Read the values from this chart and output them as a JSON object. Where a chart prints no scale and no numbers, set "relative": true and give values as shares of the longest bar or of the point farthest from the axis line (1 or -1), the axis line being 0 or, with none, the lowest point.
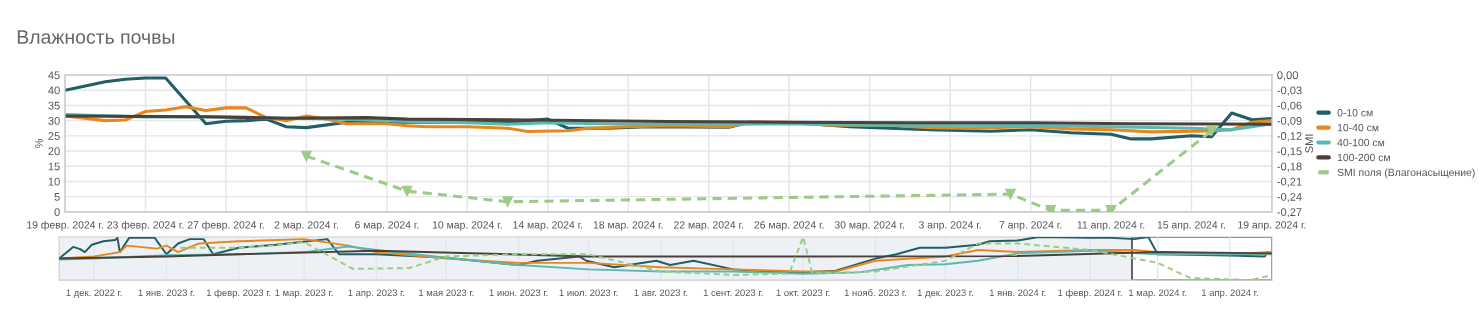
{
  "chart_data": [
    {
      "type": "line",
      "title": "Влажность почвы",
      "ylabel": "%",
      "y2label": "SMI",
      "xlim": [
        "2024-02-19",
        "2024-04-19"
      ],
      "xticks": [
        {
          "value": "2024-02-19",
          "label": "19 февр. 2024 г."
        },
        {
          "value": "2024-02-23",
          "label": "23 февр. 2024 г."
        },
        {
          "value": "2024-02-27",
          "label": "27 февр. 2024 г."
        },
        {
          "value": "2024-03-02",
          "label": "2 мар. 2024 г."
        },
        {
          "value": "2024-03-06",
          "label": "6 мар. 2024 г."
        },
        {
          "value": "2024-03-10",
          "label": "10 мар. 2024 г."
        },
        {
          "value": "2024-03-14",
          "label": "14 мар. 2024 г."
        },
        {
          "value": "2024-03-18",
          "label": "18 мар. 2024 г."
        },
        {
          "value": "2024-03-22",
          "label": "22 мар. 2024 г."
        },
        {
          "value": "2024-03-26",
          "label": "26 мар. 2024 г."
        },
        {
          "value": "2024-03-30",
          "label": "30 мар. 2024 г."
        },
        {
          "value": "2024-04-03",
          "label": "3 апр. 2024 г."
        },
        {
          "value": "2024-04-07",
          "label": "7 апр. 2024 г."
        },
        {
          "value": "2024-04-11",
          "label": "11 апр. 2024 г."
        },
        {
          "value": "2024-04-15",
          "label": "15 апр. 2024 г."
        },
        {
          "value": "2024-04-19",
          "label": "19 апр. 2024 г."
        }
      ],
      "ylim": [
        0,
        45
      ],
      "yticks": [
        0,
        5,
        10,
        15,
        20,
        25,
        30,
        35,
        40,
        45
      ],
      "y2lim": [
        -0.27,
        0
      ],
      "y2ticks": [
        {
          "value": -0.27,
          "label": "-0,27"
        },
        {
          "value": -0.24,
          "label": "-0,24"
        },
        {
          "value": -0.21,
          "label": "-0,21"
        },
        {
          "value": -0.18,
          "label": "-0,18"
        },
        {
          "value": -0.15,
          "label": "-0,15"
        },
        {
          "value": -0.12,
          "label": "-0,12"
        },
        {
          "value": -0.09,
          "label": "-0,09"
        },
        {
          "value": -0.06,
          "label": "-0,06"
        },
        {
          "value": -0.03,
          "label": "-0,03"
        },
        {
          "value": 0,
          "label": "0,00"
        }
      ],
      "grid": true,
      "legend": "right",
      "series": [
        {
          "name": "0-10 см",
          "color": "#215e66",
          "x": [
            "2024-02-19",
            "2024-02-21",
            "2024-02-22",
            "2024-02-23",
            "2024-02-24",
            "2024-02-26",
            "2024-02-27",
            "2024-02-28",
            "2024-02-29",
            "2024-03-01",
            "2024-03-02",
            "2024-03-04",
            "2024-03-08",
            "2024-03-12",
            "2024-03-14",
            "2024-03-15",
            "2024-03-17",
            "2024-03-19",
            "2024-03-23",
            "2024-03-24",
            "2024-03-27",
            "2024-03-29",
            "2024-04-02",
            "2024-04-05",
            "2024-04-07",
            "2024-04-09",
            "2024-04-11",
            "2024-04-12",
            "2024-04-13",
            "2024-04-15",
            "2024-04-16",
            "2024-04-17",
            "2024-04-18",
            "2024-04-19"
          ],
          "values": [
            40,
            42.8,
            43.6,
            44,
            44,
            29,
            29.8,
            30,
            30.5,
            28,
            27.7,
            29.5,
            29.5,
            29.5,
            30.5,
            27.5,
            27.5,
            28,
            27.8,
            29.5,
            29,
            28,
            27,
            26.5,
            27,
            26,
            25.5,
            24,
            24,
            25,
            24.7,
            32.5,
            30.3,
            30.7
          ]
        },
        {
          "name": "10-40 см",
          "color": "#e8871e",
          "x": [
            "2024-02-19",
            "2024-02-21",
            "2024-02-22",
            "2024-02-23",
            "2024-02-24",
            "2024-02-25",
            "2024-02-26",
            "2024-02-27",
            "2024-02-28",
            "2024-02-29",
            "2024-03-01",
            "2024-03-02",
            "2024-03-03",
            "2024-03-04",
            "2024-03-06",
            "2024-03-07",
            "2024-03-08",
            "2024-03-10",
            "2024-03-12",
            "2024-03-13",
            "2024-03-15",
            "2024-03-16",
            "2024-03-18",
            "2024-03-20",
            "2024-03-23",
            "2024-03-24",
            "2024-03-26",
            "2024-03-28",
            "2024-03-31",
            "2024-04-02",
            "2024-04-04",
            "2024-04-07",
            "2024-04-09",
            "2024-04-11",
            "2024-04-13",
            "2024-04-16",
            "2024-04-17",
            "2024-04-18",
            "2024-04-19"
          ],
          "values": [
            31.5,
            30,
            30.2,
            33,
            33.5,
            34.6,
            33.3,
            34.2,
            34.2,
            31,
            30,
            31.5,
            30.5,
            29,
            29,
            28.3,
            28,
            28,
            27.5,
            26.4,
            26.7,
            27.5,
            28,
            28.3,
            28,
            29.5,
            29.5,
            28.5,
            28.5,
            27.7,
            27.5,
            28,
            27.3,
            27,
            26.3,
            26.6,
            27,
            29.5,
            30
          ]
        },
        {
          "name": "40-100 см",
          "color": "#5ab8b2",
          "x": [
            "2024-02-19",
            "2024-02-23",
            "2024-02-26",
            "2024-03-01",
            "2024-03-03",
            "2024-03-06",
            "2024-03-08",
            "2024-03-10",
            "2024-03-12",
            "2024-03-14",
            "2024-03-18",
            "2024-03-22",
            "2024-03-26",
            "2024-03-30",
            "2024-04-03",
            "2024-04-07",
            "2024-04-11",
            "2024-04-15",
            "2024-04-17",
            "2024-04-19"
          ],
          "values": [
            32,
            31.2,
            31.3,
            30.8,
            30.6,
            30,
            29.6,
            29.3,
            28.8,
            29.3,
            28.8,
            28.7,
            29,
            28.5,
            28.5,
            28.4,
            28,
            27.5,
            27,
            29
          ]
        },
        {
          "name": "100-200 см",
          "color": "#4a413b",
          "x": [
            "2024-02-19",
            "2024-02-26",
            "2024-03-01",
            "2024-03-05",
            "2024-03-07",
            "2024-03-12",
            "2024-03-20",
            "2024-03-26",
            "2024-04-01",
            "2024-04-07",
            "2024-04-12",
            "2024-04-16",
            "2024-04-19"
          ],
          "values": [
            31.5,
            31.3,
            30.8,
            31,
            30.5,
            30.3,
            29.7,
            29.5,
            29.3,
            29.3,
            29,
            28.9,
            28.8
          ]
        },
        {
          "name": "SMI поля (Влагонасыщение)",
          "color": "#9ccb86",
          "axis": "y2",
          "line_style": "dashed",
          "marker": "triangle",
          "x": [
            "2024-03-02",
            "2024-03-07",
            "2024-03-12",
            "2024-04-06",
            "2024-04-08",
            "2024-04-11",
            "2024-04-16"
          ],
          "values": [
            -0.16,
            -0.229,
            -0.25,
            -0.235,
            -0.267,
            -0.267,
            -0.11
          ]
        }
      ]
    },
    {
      "type": "line",
      "relative": true,
      "xlim": [
        "2022-11-16",
        "2024-04-19"
      ],
      "xticks": [
        {
          "value": "2022-12-01",
          "label": "1 дек. 2022 г."
        },
        {
          "value": "2023-01-01",
          "label": "1 янв. 2023 г."
        },
        {
          "value": "2023-02-01",
          "label": "1 февр. 2023 г."
        },
        {
          "value": "2023-03-01",
          "label": "1 мар. 2023 г."
        },
        {
          "value": "2023-04-01",
          "label": "1 апр. 2023 г."
        },
        {
          "value": "2023-05-01",
          "label": "1 мая 2023 г."
        },
        {
          "value": "2023-06-01",
          "label": "1 июн. 2023 г."
        },
        {
          "value": "2023-07-01",
          "label": "1 июл. 2023 г."
        },
        {
          "value": "2023-08-01",
          "label": "1 авг. 2023 г."
        },
        {
          "value": "2023-09-01",
          "label": "1 сент. 2023 г."
        },
        {
          "value": "2023-10-01",
          "label": "1 окт. 2023 г."
        },
        {
          "value": "2023-11-01",
          "label": "1 нояб. 2023 г."
        },
        {
          "value": "2023-12-01",
          "label": "1 дек. 2023 г."
        },
        {
          "value": "2024-01-01",
          "label": "1 янв. 2024 г."
        },
        {
          "value": "2024-02-01",
          "label": "1 февр. 2024 г."
        },
        {
          "value": "2024-03-01",
          "label": "1 мар. 2024 г."
        },
        {
          "value": "2024-04-01",
          "label": "1 апр. 2024 г."
        }
      ],
      "tick_labels": "x",
      "grid": "x",
      "bands": [
        {
          "axis": "x",
          "from": "2024-02-19",
          "to": "2024-04-19",
          "color": "#ffffff"
        }
      ],
      "series": [
        {
          "color": "#215e66",
          "x": [
            "2022-11-16",
            "2022-11-22",
            "2022-11-25",
            "2022-11-27",
            "2022-11-30",
            "2022-12-05",
            "2022-12-10",
            "2022-12-11",
            "2022-12-12",
            "2022-12-16",
            "2022-12-27",
            "2023-01-01",
            "2023-01-06",
            "2023-01-11",
            "2023-01-17",
            "2023-01-21",
            "2023-02-01",
            "2023-02-17",
            "2023-03-11",
            "2023-03-16",
            "2023-04-01",
            "2023-05-01",
            "2023-06-01",
            "2023-06-09",
            "2023-06-27",
            "2023-06-30",
            "2023-07-12",
            "2023-07-30",
            "2023-08-05",
            "2023-08-15",
            "2023-09-01",
            "2023-09-15",
            "2023-10-01",
            "2023-10-15",
            "2023-11-01",
            "2023-11-10",
            "2023-11-20",
            "2023-12-01",
            "2023-12-15",
            "2023-12-20",
            "2024-01-01",
            "2024-01-10",
            "2024-02-01",
            "2024-02-10",
            "2024-02-20",
            "2024-02-26",
            "2024-03-01",
            "2024-04-01",
            "2024-04-16",
            "2024-04-17",
            "2024-04-19"
          ],
          "values": [
            0.5,
            0.77,
            0.72,
            0.65,
            0.82,
            0.9,
            0.93,
            0.98,
            0.65,
            0.98,
            0.98,
            0.6,
            0.85,
            0.95,
            0.95,
            0.6,
            0.75,
            0.82,
            0.95,
            0.6,
            0.6,
            0.52,
            0.35,
            0.45,
            0.55,
            0.45,
            0.3,
            0.45,
            0.35,
            0.45,
            0.25,
            0.2,
            0.18,
            0.22,
            0.5,
            0.6,
            0.75,
            0.75,
            0.82,
            0.9,
            0.92,
            1.0,
            0.98,
            0.98,
            0.95,
            1.0,
            0.6,
            0.57,
            0.55,
            0.65,
            0.62
          ]
        },
        {
          "color": "#e8871e",
          "x": [
            "2022-11-16",
            "2022-12-01",
            "2022-12-12",
            "2022-12-15",
            "2022-12-28",
            "2023-01-01",
            "2023-01-06",
            "2023-01-15",
            "2023-02-01",
            "2023-03-01",
            "2023-03-20",
            "2023-04-01",
            "2023-05-01",
            "2023-06-01",
            "2023-07-01",
            "2023-08-01",
            "2023-09-01",
            "2023-10-01",
            "2023-10-15",
            "2023-11-01",
            "2023-12-01",
            "2023-12-15",
            "2024-01-01",
            "2024-02-01",
            "2024-02-20",
            "2024-03-01",
            "2024-04-01",
            "2024-04-19"
          ],
          "values": [
            0.5,
            0.55,
            0.65,
            0.8,
            0.73,
            0.8,
            0.65,
            0.85,
            0.9,
            0.95,
            0.8,
            0.65,
            0.5,
            0.4,
            0.4,
            0.3,
            0.25,
            0.2,
            0.2,
            0.45,
            0.55,
            0.7,
            0.65,
            0.7,
            0.7,
            0.65,
            0.6,
            0.65
          ]
        },
        {
          "color": "#5ab8b2",
          "x": [
            "2022-11-16",
            "2022-12-01",
            "2023-01-01",
            "2023-02-01",
            "2023-03-01",
            "2023-03-20",
            "2023-04-01",
            "2023-05-01",
            "2023-06-01",
            "2023-07-01",
            "2023-08-01",
            "2023-09-01",
            "2023-10-01",
            "2023-10-25",
            "2023-11-15",
            "2023-12-01",
            "2023-12-15",
            "2024-01-01",
            "2024-02-01",
            "2024-03-01",
            "2024-04-19"
          ],
          "values": [
            0.48,
            0.5,
            0.58,
            0.6,
            0.65,
            0.78,
            0.7,
            0.52,
            0.35,
            0.25,
            0.2,
            0.2,
            0.15,
            0.18,
            0.35,
            0.37,
            0.45,
            0.62,
            0.68,
            0.6,
            0.6
          ]
        },
        {
          "color": "#4a413b",
          "x": [
            "2022-11-16",
            "2023-01-01",
            "2023-02-01",
            "2023-04-01",
            "2023-07-01",
            "2023-10-01",
            "2024-01-01",
            "2024-03-01",
            "2024-04-19"
          ],
          "values": [
            0.5,
            0.55,
            0.6,
            0.68,
            0.55,
            0.55,
            0.56,
            0.65,
            0.62
          ]
        },
        {
          "color": "#9ccb86",
          "line_style": "dashed",
          "x": [
            "2023-01-07",
            "2023-02-01",
            "2023-02-15",
            "2023-03-01",
            "2023-03-22",
            "2023-04-15",
            "2023-05-01",
            "2023-06-01",
            "2023-07-01",
            "2023-08-01",
            "2023-09-01",
            "2023-09-25",
            "2023-10-01",
            "2023-10-05",
            "2023-11-01",
            "2023-12-01",
            "2023-12-15",
            "2024-01-01",
            "2024-02-01",
            "2024-03-01",
            "2024-03-15",
            "2024-04-10",
            "2024-04-19"
          ],
          "values": [
            0.75,
            0.75,
            0.8,
            0.88,
            0.26,
            0.28,
            0.55,
            0.6,
            0.6,
            0.2,
            0.12,
            0.15,
            1.0,
            0.15,
            0.2,
            0.45,
            0.85,
            0.85,
            0.7,
            0.4,
            0.05,
            0.0,
            0.12
          ]
        }
      ]
    }
  ]
}
